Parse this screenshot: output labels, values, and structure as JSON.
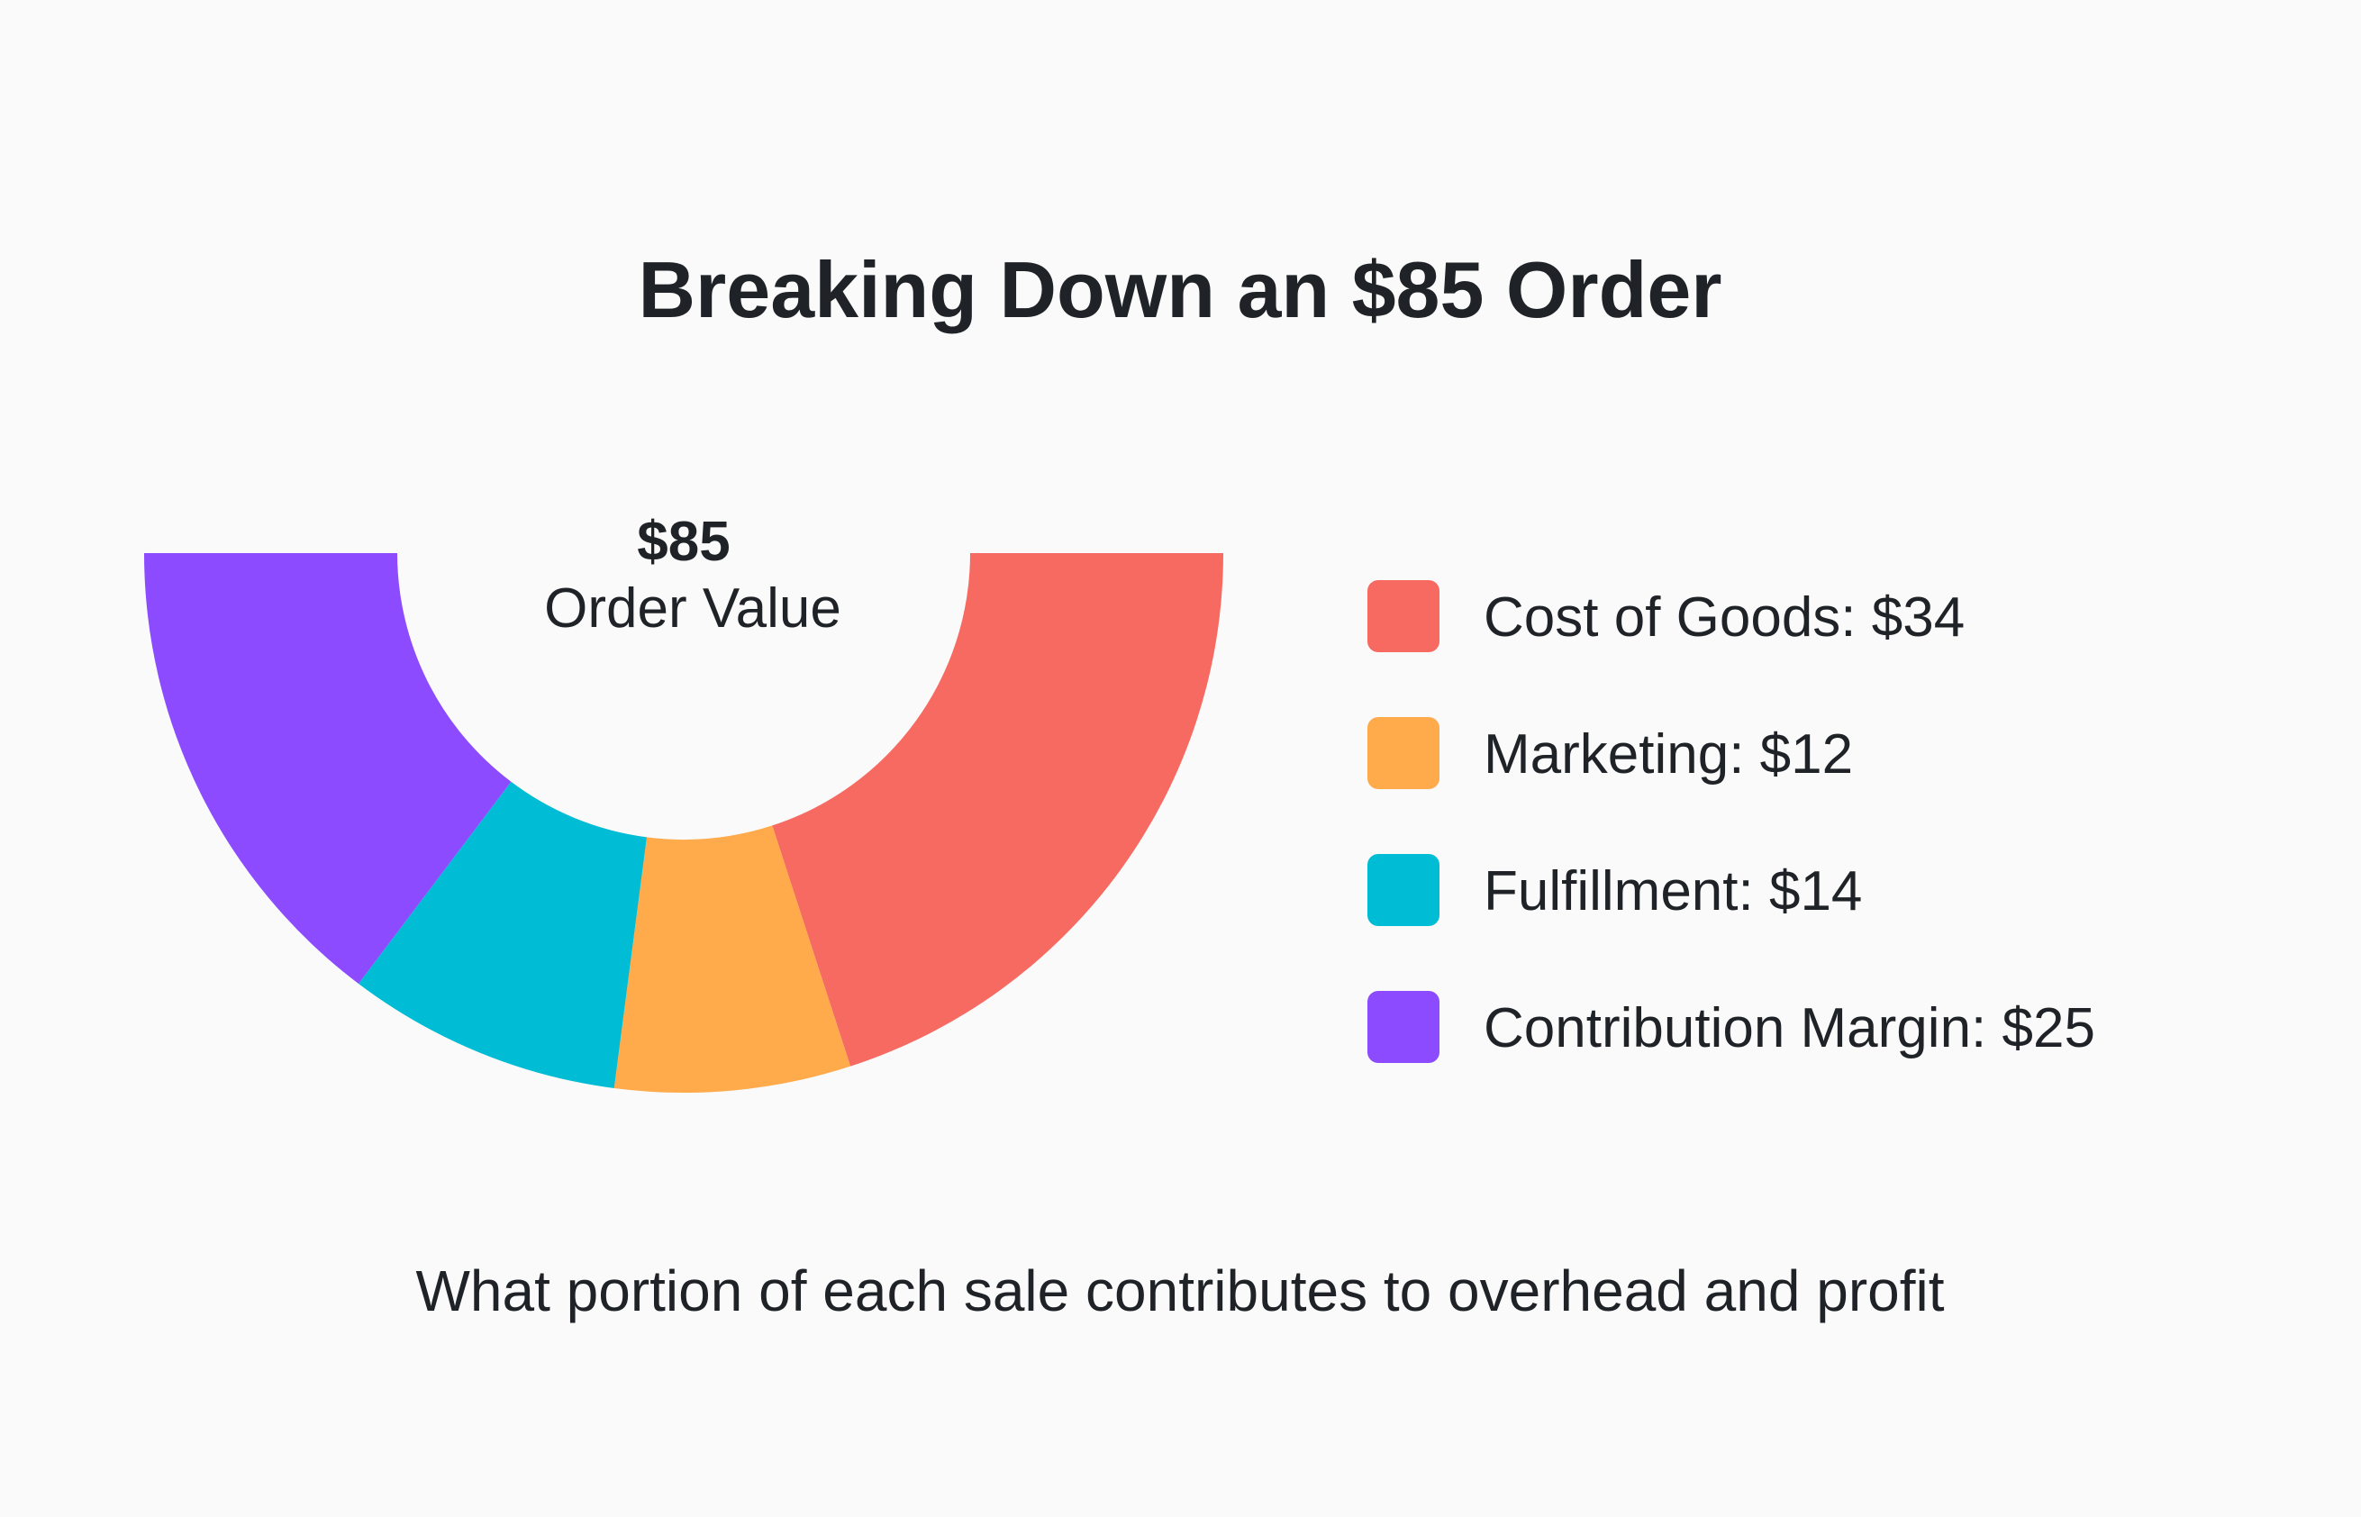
{
  "chart_data": {
    "type": "pie",
    "variant": "half-donut",
    "title": "Breaking Down an $85 Order",
    "subtitle": "What portion of each sale contributes to overhead and profit",
    "center_label": {
      "value": "$85",
      "label": "Order Value"
    },
    "total": 85,
    "legend_placement": "right",
    "slices": [
      {
        "name": "Cost of Goods",
        "value": 34,
        "legend": "Cost of Goods: $34",
        "color": "#F76A62"
      },
      {
        "name": "Marketing",
        "value": 12,
        "legend": "Marketing: $12",
        "color": "#FFAB4C"
      },
      {
        "name": "Fulfillment",
        "value": 14,
        "legend": "Fulfillment: $14",
        "color": "#00BCD4"
      },
      {
        "name": "Contribution Margin",
        "value": 25,
        "legend": "Contribution Margin: $25",
        "color": "#8C4BFF"
      }
    ]
  }
}
